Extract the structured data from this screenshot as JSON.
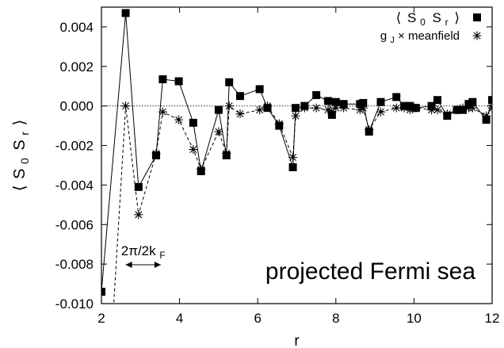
{
  "chart_data": {
    "type": "line",
    "title": "",
    "xlabel": "r",
    "ylabel_parts": {
      "open": "⟨",
      "s0": "S",
      "sub0": "0",
      "sr": "S",
      "subr": "r",
      "close": "⟩"
    },
    "xlim": [
      2,
      12
    ],
    "ylim": [
      -0.01,
      0.005
    ],
    "xticks": [
      2,
      4,
      6,
      8,
      10,
      12
    ],
    "xtick_labels": [
      "2",
      "4",
      "6",
      "8",
      "10",
      "12"
    ],
    "yticks": [
      -0.01,
      -0.008,
      -0.006,
      -0.004,
      -0.002,
      0.0,
      0.002,
      0.004
    ],
    "ytick_labels": [
      "-0.010",
      "-0.008",
      "-0.006",
      "-0.004",
      "-0.002",
      "0.000",
      "0.002",
      "0.004"
    ],
    "zero_line": true,
    "legend_position": "top-right",
    "annotation": "projected Fermi sea",
    "wavelength_label": {
      "num": "2π/2k",
      "sub": "F"
    },
    "wavelength_arrow": [
      2.62,
      3.52
    ],
    "series": [
      {
        "name": "⟨ S0 Sr ⟩",
        "legend": {
          "open": "⟨",
          "s0": "S",
          "sub0": "0",
          "sr": "S",
          "subr": "r",
          "close": "⟩"
        },
        "marker": "filled-square",
        "line": "solid",
        "x": [
          2.0,
          2.62,
          2.95,
          3.4,
          3.57,
          3.98,
          4.35,
          4.55,
          5.0,
          5.2,
          5.27,
          5.55,
          6.05,
          6.25,
          6.55,
          6.9,
          6.97,
          7.2,
          7.5,
          7.8,
          7.9,
          8.0,
          8.2,
          8.62,
          8.7,
          8.85,
          9.15,
          9.55,
          9.75,
          9.9,
          10.05,
          10.45,
          10.6,
          10.85,
          11.1,
          11.25,
          11.4,
          11.5,
          11.85,
          12.0
        ],
        "values": [
          -0.0094,
          0.0047,
          -0.0041,
          -0.0025,
          0.00135,
          0.00125,
          -0.00085,
          -0.0033,
          -0.0002,
          -0.0025,
          0.0012,
          0.0005,
          0.00085,
          -0.0001,
          -0.001,
          -0.0031,
          -0.0001,
          0.0,
          0.00055,
          0.00025,
          -0.00045,
          0.0002,
          0.0001,
          0.0001,
          0.00015,
          -0.0013,
          0.0002,
          0.00045,
          0.0,
          0.0,
          -0.0001,
          0.0,
          0.0003,
          -0.0005,
          -0.0002,
          -0.0002,
          0.0001,
          0.0002,
          -0.0007,
          0.0003
        ]
      },
      {
        "name": "gJ × meanfield",
        "legend": {
          "g": "g",
          "sub": "J",
          "rest": " × meanfield"
        },
        "marker": "star",
        "line": "dashed",
        "x": [
          2.3,
          2.62,
          2.95,
          3.4,
          3.57,
          3.98,
          4.35,
          4.55,
          5.0,
          5.2,
          5.27,
          5.55,
          6.05,
          6.25,
          6.55,
          6.9,
          6.97,
          7.2,
          7.5,
          7.8,
          7.9,
          8.0,
          8.2,
          8.62,
          8.7,
          8.85,
          9.15,
          9.55,
          9.75,
          9.9,
          10.05,
          10.45,
          10.6,
          10.85,
          11.1,
          11.25,
          11.4,
          11.5,
          11.85,
          12.0
        ],
        "values": [
          -0.0105,
          0.0,
          -0.0055,
          -0.0024,
          -0.0003,
          -0.0007,
          -0.0022,
          -0.0032,
          -0.0013,
          -0.0024,
          0.0,
          -0.0004,
          -0.0002,
          0.0,
          -0.0009,
          -0.0026,
          -0.0005,
          -0.0001,
          -0.0001,
          -0.0002,
          -0.0003,
          -0.0001,
          -0.0001,
          -0.0002,
          -0.0001,
          -0.0012,
          -0.0003,
          -0.0001,
          -0.0001,
          -0.0002,
          -0.0001,
          -0.0002,
          -0.0002,
          -0.0004,
          -0.0002,
          -0.0001,
          -0.0001,
          -0.0001,
          -0.0005,
          -0.0001
        ]
      }
    ]
  }
}
